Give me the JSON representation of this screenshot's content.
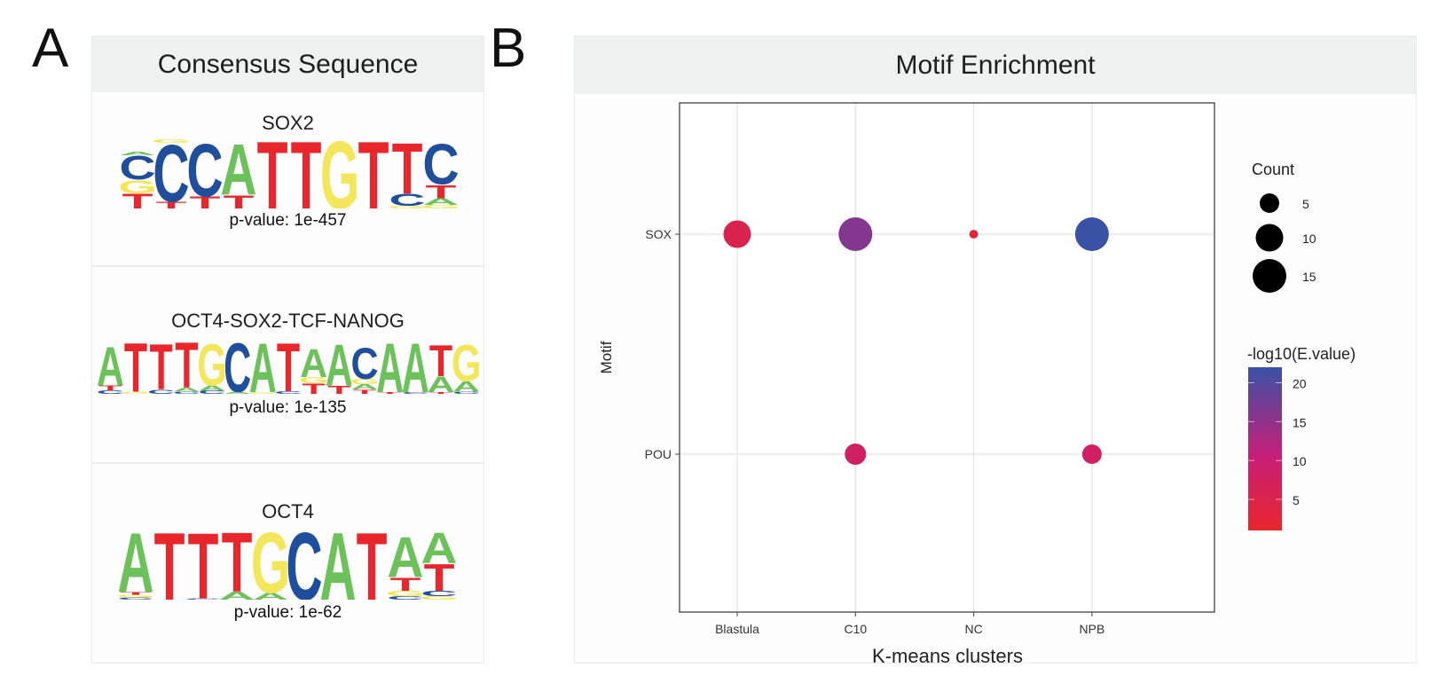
{
  "panel_a": {
    "letter": "A",
    "header": "Consensus Sequence",
    "motifs": [
      {
        "name": "SOX2",
        "pvalue_label": "p-value: 1e-457",
        "positions": [
          [
            [
              "T",
              0.22
            ],
            [
              "G",
              0.2
            ],
            [
              "C",
              0.35
            ],
            [
              "A",
              0.05
            ]
          ],
          [
            [
              "T",
              0.1
            ],
            [
              "C",
              0.85
            ],
            [
              "G",
              0.05
            ]
          ],
          [
            [
              "T",
              0.18
            ],
            [
              "C",
              0.78
            ]
          ],
          [
            [
              "T",
              0.2
            ],
            [
              "A",
              0.75
            ]
          ],
          [
            [
              "T",
              1.0
            ]
          ],
          [
            [
              "T",
              1.0
            ]
          ],
          [
            [
              "G",
              1.0
            ]
          ],
          [
            [
              "T",
              1.0
            ]
          ],
          [
            [
              "G",
              0.04
            ],
            [
              "C",
              0.18
            ],
            [
              "T",
              0.75
            ]
          ],
          [
            [
              "G",
              0.05
            ],
            [
              "A",
              0.1
            ],
            [
              "T",
              0.2
            ],
            [
              "C",
              0.6
            ]
          ]
        ]
      },
      {
        "name": "OCT4-SOX2-TCF-NANOG",
        "pvalue_label": "p-value: 1e-135",
        "positions": [
          [
            [
              "C",
              0.06
            ],
            [
              "T",
              0.1
            ],
            [
              "A",
              0.75
            ]
          ],
          [
            [
              "G",
              0.04
            ],
            [
              "T",
              0.95
            ]
          ],
          [
            [
              "C",
              0.08
            ],
            [
              "T",
              0.88
            ]
          ],
          [
            [
              "C",
              0.04
            ],
            [
              "A",
              0.08
            ],
            [
              "T",
              0.88
            ]
          ],
          [
            [
              "C",
              0.06
            ],
            [
              "A",
              0.1
            ],
            [
              "G",
              0.8
            ]
          ],
          [
            [
              "A",
              0.04
            ],
            [
              "C",
              0.95
            ]
          ],
          [
            [
              "G",
              0.03
            ],
            [
              "A",
              0.95
            ]
          ],
          [
            [
              "C",
              0.05
            ],
            [
              "T",
              0.93
            ]
          ],
          [
            [
              "T",
              0.2
            ],
            [
              "G",
              0.12
            ],
            [
              "A",
              0.55
            ]
          ],
          [
            [
              "T",
              0.15
            ],
            [
              "A",
              0.8
            ]
          ],
          [
            [
              "T",
              0.08
            ],
            [
              "A",
              0.1
            ],
            [
              "G",
              0.1
            ],
            [
              "C",
              0.6
            ]
          ],
          [
            [
              "T",
              0.03
            ],
            [
              "A",
              0.95
            ]
          ],
          [
            [
              "C",
              0.03
            ],
            [
              "A",
              0.95
            ]
          ],
          [
            [
              "T",
              0.03
            ],
            [
              "A",
              0.3
            ],
            [
              "T",
              0.6
            ]
          ],
          [
            [
              "C",
              0.04
            ],
            [
              "A",
              0.2
            ],
            [
              "G",
              0.7
            ]
          ]
        ]
      },
      {
        "name": "OCT4",
        "pvalue_label": "p-value: 1e-62",
        "positions": [
          [
            [
              "C",
              0.03
            ],
            [
              "G",
              0.04
            ],
            [
              "T",
              0.04
            ],
            [
              "A",
              0.88
            ]
          ],
          [
            [
              "T",
              1.0
            ]
          ],
          [
            [
              "C",
              0.02
            ],
            [
              "T",
              0.98
            ]
          ],
          [
            [
              "A",
              0.12
            ],
            [
              "T",
              0.88
            ]
          ],
          [
            [
              "A",
              0.1
            ],
            [
              "G",
              0.9
            ]
          ],
          [
            [
              "C",
              1.0
            ]
          ],
          [
            [
              "A",
              1.0
            ]
          ],
          [
            [
              "T",
              1.0
            ]
          ],
          [
            [
              "C",
              0.05
            ],
            [
              "G",
              0.08
            ],
            [
              "T",
              0.2
            ],
            [
              "A",
              0.6
            ]
          ],
          [
            [
              "G",
              0.05
            ],
            [
              "C",
              0.08
            ],
            [
              "T",
              0.4
            ],
            [
              "A",
              0.45
            ]
          ]
        ]
      }
    ],
    "base_colors": {
      "A": "#6cc15a",
      "C": "#1f4e9c",
      "G": "#f3e65a",
      "T": "#e8262b"
    }
  },
  "panel_b": {
    "letter": "B",
    "header": "Motif Enrichment"
  },
  "chart_data": {
    "type": "scatter",
    "subtype": "dot-plot",
    "title": "Motif Enrichment",
    "xlabel": "K-means clusters",
    "ylabel": "Motif",
    "x_categories": [
      "Blastula",
      "C10",
      "NC",
      "NPB"
    ],
    "y_categories": [
      "POU",
      "SOX"
    ],
    "grid": true,
    "points": [
      {
        "x": "Blastula",
        "y": "SOX",
        "count": 10,
        "neg_log10_evalue": 5
      },
      {
        "x": "C10",
        "y": "SOX",
        "count": 15,
        "neg_log10_evalue": 16
      },
      {
        "x": "NC",
        "y": "SOX",
        "count": 1,
        "neg_log10_evalue": 2
      },
      {
        "x": "NPB",
        "y": "SOX",
        "count": 15,
        "neg_log10_evalue": 22
      },
      {
        "x": "C10",
        "y": "POU",
        "count": 6,
        "neg_log10_evalue": 8
      },
      {
        "x": "NPB",
        "y": "POU",
        "count": 5,
        "neg_log10_evalue": 8
      }
    ],
    "size_legend": {
      "title": "Count",
      "values": [
        5,
        10,
        15
      ],
      "labels": [
        "5",
        "10",
        "15"
      ],
      "range": [
        1,
        15
      ]
    },
    "color_legend": {
      "title": "-log10(E.value)",
      "ticks": [
        5,
        10,
        15,
        20
      ],
      "tick_labels": [
        "5",
        "10",
        "15",
        "20"
      ],
      "range": [
        1,
        22
      ],
      "low_color": "#e8262b",
      "mid_color": "#c81e78",
      "high_color": "#3a52a6"
    },
    "legend_position": "right"
  }
}
